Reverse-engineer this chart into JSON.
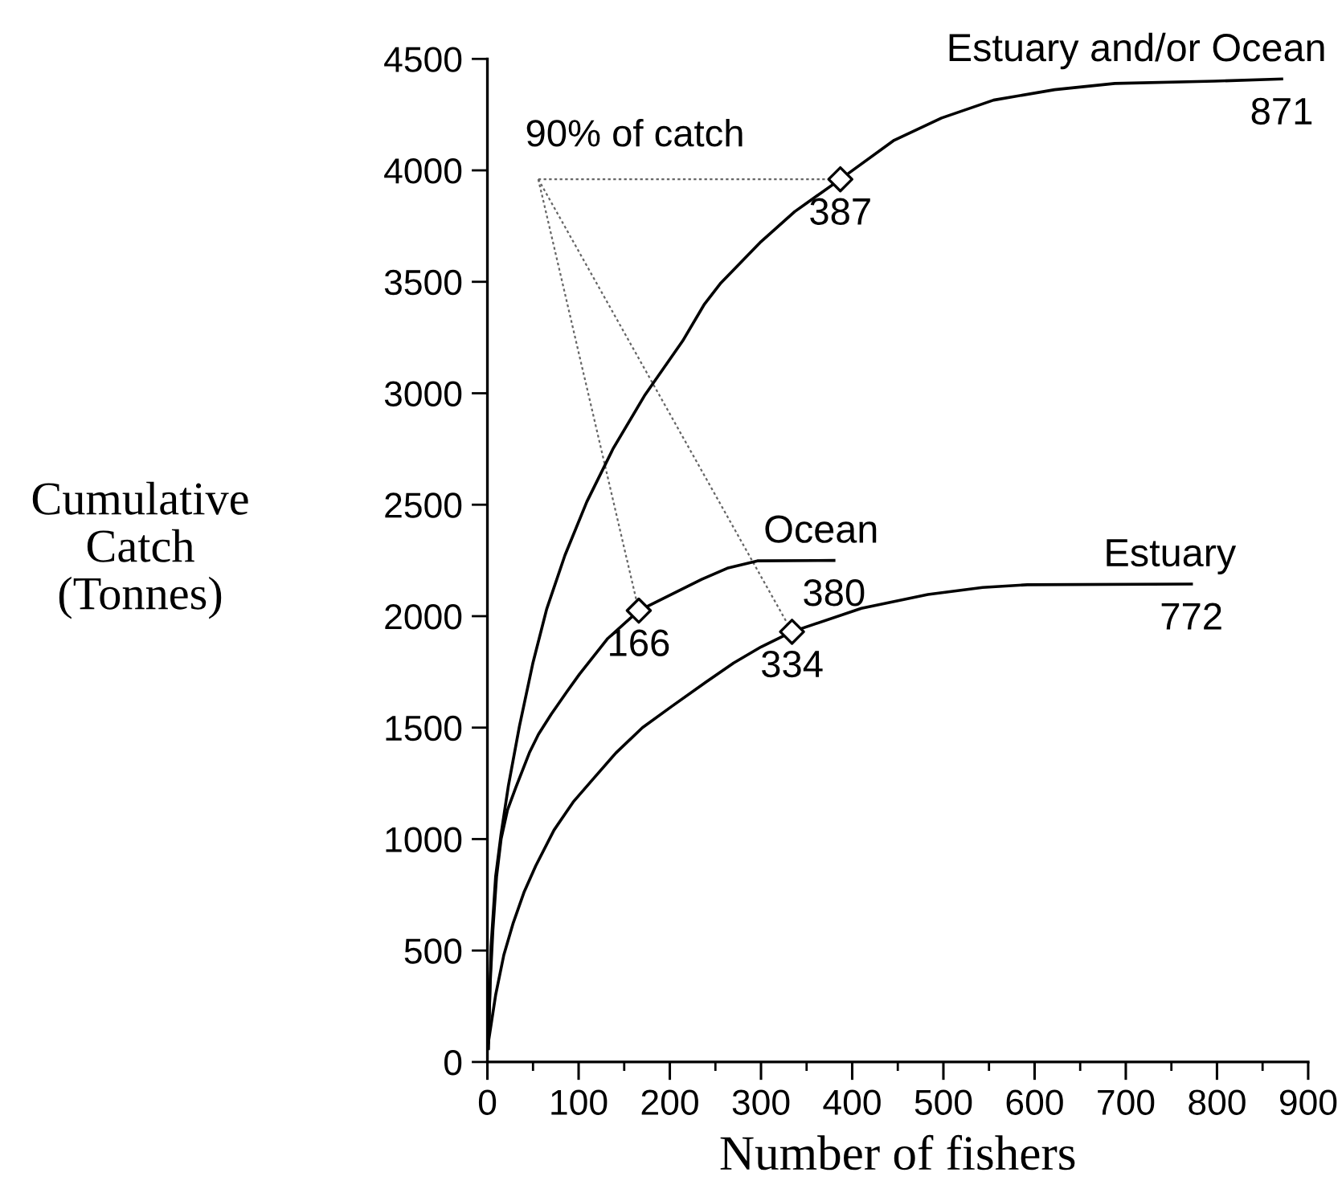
{
  "chart_data": {
    "type": "line",
    "xlabel": "Number of fishers",
    "ylabel": "Cumulative\nCatch\n(Tonnes)",
    "xlim": [
      0,
      900
    ],
    "ylim": [
      0,
      4500
    ],
    "xticks": [
      0,
      {
        "value": 50,
        "label": null
      },
      100,
      {
        "value": 150,
        "label": null
      },
      200,
      {
        "value": 250,
        "label": null
      },
      300,
      {
        "value": 350,
        "label": null
      },
      400,
      {
        "value": 450,
        "label": null
      },
      500,
      {
        "value": 550,
        "label": null
      },
      600,
      {
        "value": 650,
        "label": null
      },
      700,
      {
        "value": 750,
        "label": null
      },
      800,
      {
        "value": 850,
        "label": null
      },
      900
    ],
    "yticks": [
      0,
      500,
      1000,
      1500,
      2000,
      2500,
      3000,
      3500,
      4000,
      4500
    ],
    "series": [
      {
        "name": "Estuary and/or Ocean",
        "color": "#000000",
        "x": [
          1,
          4,
          9,
          15,
          23,
          35,
          50,
          65,
          85,
          109,
          138,
          173,
          214,
          238,
          256,
          300,
          337,
          387,
          446,
          498,
          555,
          622,
          688,
          797,
          871
        ],
        "values": [
          60,
          518,
          831,
          1023,
          1239,
          1504,
          1792,
          2032,
          2273,
          2513,
          2753,
          2994,
          3234,
          3400,
          3495,
          3680,
          3815,
          3960,
          4135,
          4235,
          4315,
          4362,
          4390,
          4400,
          4410
        ]
      },
      {
        "name": "Ocean",
        "color": "#000000",
        "x": [
          1,
          3,
          6,
          10,
          15,
          22,
          31,
          46,
          56,
          70,
          87,
          101,
          132,
          166,
          208,
          235,
          263,
          296,
          380
        ],
        "values": [
          62,
          350,
          591,
          830,
          1000,
          1130,
          1230,
          1387,
          1470,
          1560,
          1660,
          1740,
          1900,
          2025,
          2110,
          2165,
          2215,
          2248,
          2250
        ]
      },
      {
        "name": "Estuary",
        "color": "#000000",
        "x": [
          1,
          9,
          18,
          28,
          40,
          53,
          73,
          94,
          115,
          141,
          170,
          202,
          240,
          270,
          300,
          334,
          410,
          483,
          543,
          592,
          772
        ],
        "values": [
          86,
          300,
          480,
          620,
          760,
          880,
          1040,
          1166,
          1265,
          1387,
          1500,
          1595,
          1705,
          1790,
          1862,
          1930,
          2035,
          2097,
          2129,
          2141,
          2144
        ]
      },
      {
        "type": "scatter",
        "marker": "diamond",
        "color": "#000000",
        "x": [
          387,
          166,
          334
        ],
        "values": [
          3960,
          2025,
          1930
        ]
      }
    ],
    "annotations": [
      {
        "text": "90% of catch",
        "x": 387,
        "y": 3960
      },
      {
        "text": "387",
        "x": 387,
        "y": 3960
      },
      {
        "text": "871",
        "x": 871,
        "y": 4410
      },
      {
        "text": "166",
        "x": 166,
        "y": 2025
      },
      {
        "text": "380",
        "x": 380,
        "y": 2250
      },
      {
        "text": "334",
        "x": 334,
        "y": 1930
      },
      {
        "text": "772",
        "x": 772,
        "y": 2144
      }
    ]
  }
}
